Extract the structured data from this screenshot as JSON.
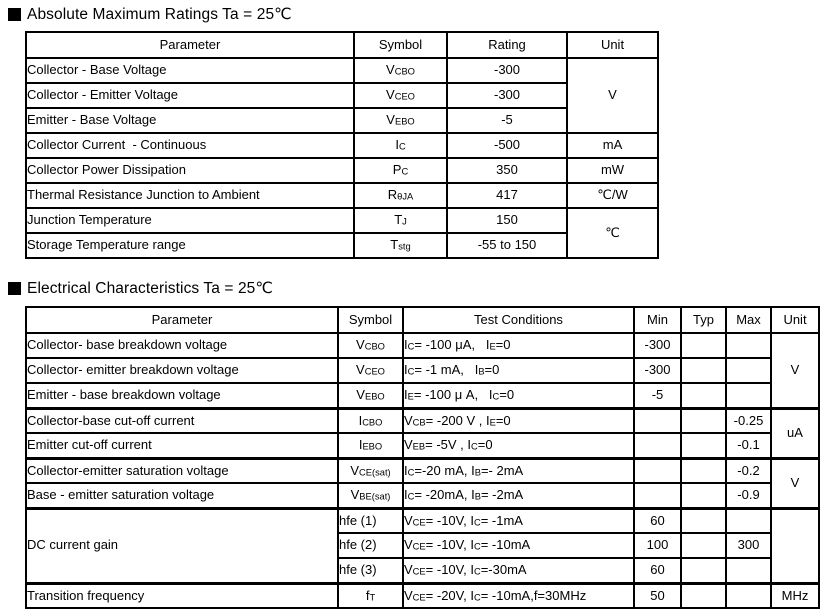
{
  "page": {
    "background": "#ffffff",
    "text_color": "#000000",
    "border_color": "#000000"
  },
  "abs_max": {
    "title": "Absolute Maximum Ratings Ta = 25℃",
    "headers": {
      "parameter": "Parameter",
      "symbol": "Symbol",
      "rating": "Rating",
      "unit": "Unit"
    },
    "rows": [
      {
        "parameter": "Collector - Base Voltage",
        "symbol": "V~CBO~",
        "rating": "-300",
        "unit": "V"
      },
      {
        "parameter": "Collector - Emitter Voltage",
        "symbol": "V~CEO~",
        "rating": "-300"
      },
      {
        "parameter": "Emitter - Base Voltage",
        "symbol": "V~EBO~",
        "rating": "-5"
      },
      {
        "parameter": "Collector Current  - Continuous",
        "symbol": "I~C~",
        "rating": "-500",
        "unit": "mA"
      },
      {
        "parameter": "Collector Power Dissipation",
        "symbol": "P~C~",
        "rating": "350",
        "unit": "mW"
      },
      {
        "parameter": "Thermal Resistance Junction to Ambient",
        "symbol": "R~θJA~",
        "rating": "417",
        "unit": "℃/W"
      },
      {
        "parameter": "Junction Temperature",
        "symbol": "T~J~",
        "rating": "150",
        "unit": "℃"
      },
      {
        "parameter": "Storage Temperature range",
        "symbol": "T~stg~",
        "rating": "-55 to 150"
      }
    ]
  },
  "electrical": {
    "title": "Electrical Characteristics Ta = 25℃",
    "headers": {
      "parameter": "Parameter",
      "symbol": "Symbol",
      "test_conditions": "Test Conditions",
      "min": "Min",
      "typ": "Typ",
      "max": "Max",
      "unit": "Unit"
    },
    "rows": [
      {
        "parameter": "Collector- base breakdown voltage",
        "symbol": "V~CBO~",
        "test_conditions": "I~C~= -100 μA,   I~E~=0",
        "min": "-300",
        "typ": "",
        "max": "",
        "unit": "V"
      },
      {
        "parameter": "Collector- emitter breakdown voltage",
        "symbol": "V~CEO~",
        "test_conditions": "I~C~= -1 mA,   I~B~=0",
        "min": "-300",
        "typ": "",
        "max": ""
      },
      {
        "parameter": "Emitter - base breakdown voltage",
        "symbol": "V~EBO~",
        "test_conditions": "I~E~= -100 μ A,   I~C~=0",
        "min": "-5",
        "typ": "",
        "max": ""
      },
      {
        "parameter": "Collector-base cut-off current",
        "symbol": "I~CBO~",
        "test_conditions": "V~CB~= -200 V , I~E~=0",
        "min": "",
        "typ": "",
        "max": "-0.25",
        "unit": "uA"
      },
      {
        "parameter": "Emitter cut-off current",
        "symbol": "I~EBO~",
        "test_conditions": "V~EB~= -5V , I~C~=0",
        "min": "",
        "typ": "",
        "max": "-0.1"
      },
      {
        "parameter": "Collector-emitter saturation voltage",
        "symbol": "V~CE(sat)~",
        "test_conditions": "I~C~=-20 mA, I~B~=- 2mA",
        "min": "",
        "typ": "",
        "max": "-0.2",
        "unit": "V"
      },
      {
        "parameter": "Base - emitter saturation voltage",
        "symbol": "V~BE(sat)~",
        "test_conditions": "I~C~= -20mA, I~B~= -2mA",
        "min": "",
        "typ": "",
        "max": "-0.9"
      },
      {
        "parameter": "DC current gain",
        "symbol": "hfe (1)",
        "test_conditions": "V~CE~= -10V, I~C~= -1mA",
        "min": "60",
        "typ": "",
        "max": "",
        "unit": ""
      },
      {
        "symbol": "hfe (2)",
        "test_conditions": "V~CE~= -10V, I~C~= -10mA",
        "min": "100",
        "typ": "",
        "max": "300"
      },
      {
        "symbol": "hfe (3)",
        "test_conditions": "V~CE~= -10V, I~C~=-30mA",
        "min": "60",
        "typ": "",
        "max": ""
      },
      {
        "parameter": "Transition frequency",
        "symbol": "f~T~",
        "test_conditions": "V~CE~= -20V, I~C~= -10mA,f=30MHz",
        "min": "50",
        "typ": "",
        "max": "",
        "unit": "MHz"
      }
    ]
  }
}
